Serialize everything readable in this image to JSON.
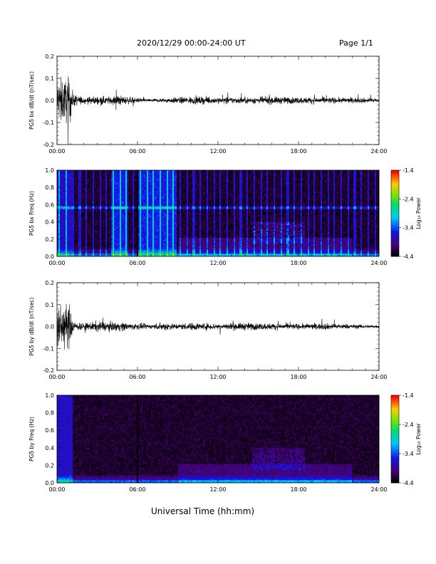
{
  "header": {
    "date_range": "2020/12/29   00:00-24:00 UT",
    "page": "Page 1/1"
  },
  "xlabel": "Universal Time (hh:mm)",
  "colors": {
    "background": "#ffffff",
    "axes": "#000000",
    "trace": "#000000"
  },
  "chart_data": [
    {
      "type": "line",
      "ylabel": "PG5 bx dB/dt (nT/sec)",
      "x_range_hours": [
        0,
        24
      ],
      "xticks": [
        "00:00",
        "06:00",
        "12:00",
        "18:00",
        "24:00"
      ],
      "yticks": [
        "-0.2",
        "-0.1",
        "0.0",
        "0.1",
        "0.2"
      ],
      "ylim": [
        -0.2,
        0.2
      ],
      "envelope": {
        "hours": [
          0,
          0.2,
          0.4,
          0.6,
          0.8,
          1,
          1.2,
          2,
          3,
          4,
          4.5,
          5,
          5.5,
          6,
          7,
          8,
          9,
          10,
          12,
          14,
          16,
          18,
          20,
          21,
          22,
          24
        ],
        "amplitude": [
          0.2,
          0.2,
          0.2,
          0.2,
          0.2,
          0.2,
          0.06,
          0.03,
          0.04,
          0.035,
          0.05,
          0.04,
          0.03,
          0.02,
          0.015,
          0.02,
          0.03,
          0.035,
          0.03,
          0.03,
          0.035,
          0.03,
          0.03,
          0.025,
          0.025,
          0.02
        ]
      }
    },
    {
      "type": "heatmap",
      "ylabel": "PG5 bx Freq (Hz)",
      "x_range_hours": [
        0,
        24
      ],
      "xticks": [
        "00:00",
        "06:00",
        "12:00",
        "18:00",
        "24:00"
      ],
      "yticks": [
        "0.0",
        "0.2",
        "0.4",
        "0.6",
        "0.8",
        "1.0"
      ],
      "ylim": [
        0,
        1
      ],
      "colorbar": {
        "label": "Log₁₀ Power",
        "ticks": [
          "-1.4",
          "-2.4",
          "-3.4",
          "-4.4"
        ],
        "range": [
          -4.4,
          -1.4
        ]
      },
      "features": {
        "broadband_hours": [
          [
            4.0,
            5.2
          ],
          [
            6.1,
            8.9
          ]
        ],
        "vertical_stripes_every_hours": 0.5,
        "stripe_start_hour": 0.2,
        "line_at_hz": 0.57,
        "enhanced_band": {
          "hours": [
            14.5,
            18.5
          ],
          "hz": [
            0.15,
            0.4
          ]
        }
      }
    },
    {
      "type": "line",
      "ylabel": "PG5 by dB/dt (nT/sec)",
      "x_range_hours": [
        0,
        24
      ],
      "xticks": [
        "00:00",
        "06:00",
        "12:00",
        "18:00",
        "24:00"
      ],
      "yticks": [
        "-0.2",
        "-0.1",
        "0.0",
        "0.1",
        "0.2"
      ],
      "ylim": [
        -0.2,
        0.2
      ],
      "envelope": {
        "hours": [
          0,
          0.2,
          0.4,
          0.6,
          0.8,
          1,
          1.2,
          2,
          3,
          4,
          4.5,
          5,
          5.5,
          6,
          7,
          8,
          9,
          10,
          12,
          14,
          16,
          18,
          20,
          21,
          22,
          24
        ],
        "amplitude": [
          0.2,
          0.2,
          0.2,
          0.2,
          0.2,
          0.2,
          0.05,
          0.03,
          0.05,
          0.04,
          0.045,
          0.04,
          0.03,
          0.03,
          0.02,
          0.04,
          0.025,
          0.035,
          0.03,
          0.035,
          0.03,
          0.025,
          0.03,
          0.025,
          0.02,
          0.015
        ]
      }
    },
    {
      "type": "heatmap",
      "ylabel": "PG5 by Freq (Hz)",
      "x_range_hours": [
        0,
        24
      ],
      "xticks": [
        "00:00",
        "06:00",
        "12:00",
        "18:00",
        "24:00"
      ],
      "yticks": [
        "0.0",
        "0.2",
        "0.4",
        "0.6",
        "0.8",
        "1.0"
      ],
      "ylim": [
        0,
        1
      ],
      "colorbar": {
        "label": "Log₁₀ Power",
        "ticks": [
          "-1.4",
          "-2.4",
          "-3.4",
          "-4.4"
        ],
        "range": [
          -4.4,
          -1.4
        ]
      },
      "features": {
        "broadband_hours": [],
        "vertical_stripes_every_hours": 0,
        "stripe_start_hour": 0,
        "line_at_hz": null,
        "enhanced_band": {
          "hours": [
            14.5,
            18.5
          ],
          "hz": [
            0.15,
            0.4
          ]
        }
      }
    }
  ]
}
